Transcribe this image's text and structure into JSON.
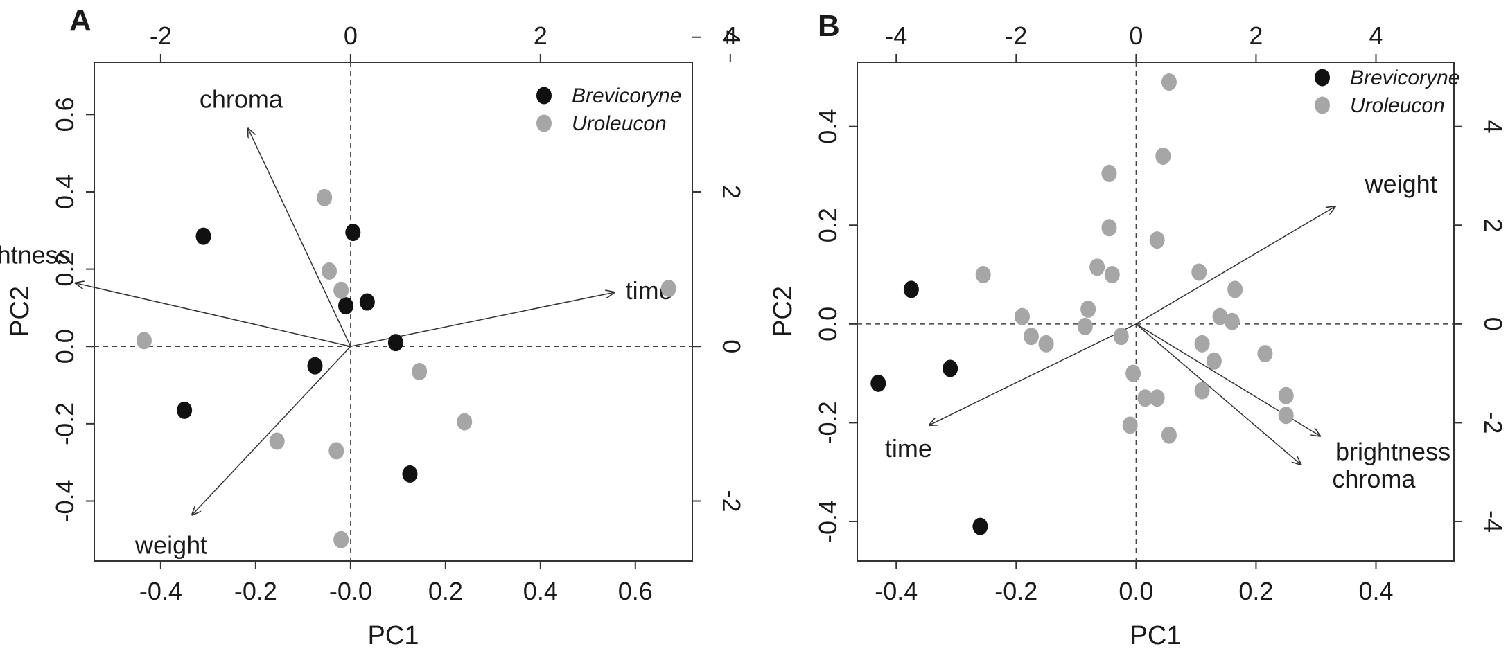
{
  "colors": {
    "Brevicoryne": "#111111",
    "Uroleucon": "#a6a6a6",
    "axis": "#333333",
    "dashed": "#444444"
  },
  "chart_data": [
    {
      "panel": "A",
      "type": "scatter",
      "xlabel": "PC1",
      "ylabel": "PC2",
      "xlim": [
        -0.54,
        0.72
      ],
      "ylim": [
        -0.555,
        0.735
      ],
      "xticks": [
        -0.4,
        -0.2,
        0.0,
        0.2,
        0.4,
        0.6
      ],
      "xtick_labels": [
        "-0.4",
        "-0.2",
        "-0.0",
        "0.2",
        "0.4",
        "0.6"
      ],
      "yticks": [
        -0.4,
        -0.2,
        0.0,
        0.2,
        0.4,
        0.6
      ],
      "ytick_labels": [
        "-0.4",
        "-0.2",
        "0.0",
        "0.2",
        "0.4",
        "0.6"
      ],
      "top_ticks": [
        -2,
        0,
        2,
        4
      ],
      "top_tick_labels": [
        "-2",
        "0",
        "2",
        "4"
      ],
      "right_ticks": [
        -2,
        0,
        2,
        4
      ],
      "right_tick_labels": [
        "-2",
        "0",
        "2",
        "4"
      ],
      "loading_scale": 0.2,
      "legend": {
        "position": "top-right",
        "entries": [
          "Brevicoryne",
          "Uroleucon"
        ]
      },
      "series": [
        {
          "name": "Brevicoryne",
          "points": [
            [
              -0.31,
              0.285
            ],
            [
              0.005,
              0.295
            ],
            [
              -0.01,
              0.105
            ],
            [
              0.035,
              0.115
            ],
            [
              0.095,
              0.01
            ],
            [
              -0.075,
              -0.05
            ],
            [
              -0.35,
              -0.165
            ],
            [
              0.125,
              -0.33
            ]
          ]
        },
        {
          "name": "Uroleucon",
          "points": [
            [
              -0.055,
              0.385
            ],
            [
              -0.045,
              0.195
            ],
            [
              -0.02,
              0.145
            ],
            [
              -0.435,
              0.015
            ],
            [
              0.67,
              0.15
            ],
            [
              0.145,
              -0.065
            ],
            [
              0.24,
              -0.195
            ],
            [
              -0.155,
              -0.245
            ],
            [
              -0.03,
              -0.27
            ],
            [
              -0.02,
              -0.5
            ]
          ]
        }
      ],
      "loadings": [
        {
          "label": "chroma",
          "x": -1.08,
          "y": 2.82
        },
        {
          "label": "brightness",
          "x": -2.9,
          "y": 0.82
        },
        {
          "label": "time",
          "x": 2.78,
          "y": 0.7
        },
        {
          "label": "weight",
          "x": -1.67,
          "y": -2.18
        }
      ]
    },
    {
      "panel": "B",
      "type": "scatter",
      "xlabel": "PC1",
      "ylabel": "PC2",
      "xlim": [
        -0.465,
        0.53
      ],
      "ylim": [
        -0.48,
        0.53
      ],
      "xticks": [
        -0.4,
        -0.2,
        0.0,
        0.2,
        0.4
      ],
      "xtick_labels": [
        "-0.4",
        "-0.2",
        "0.0",
        "0.2",
        "0.4"
      ],
      "yticks": [
        -0.4,
        -0.2,
        0.0,
        0.2,
        0.4
      ],
      "ytick_labels": [
        "-0.4",
        "-0.2",
        "0.0",
        "0.2",
        "0.4"
      ],
      "top_ticks": [
        -4,
        -2,
        0,
        2,
        4
      ],
      "top_tick_labels": [
        "-4",
        "-2",
        "0",
        "2",
        "4"
      ],
      "right_ticks": [
        -4,
        -2,
        0,
        2,
        4
      ],
      "right_tick_labels": [
        "-4",
        "-2",
        "0",
        "2",
        "4"
      ],
      "loading_scale": 0.1,
      "legend": {
        "position": "top-right",
        "entries": [
          "Brevicoryne",
          "Uroleucon"
        ]
      },
      "series": [
        {
          "name": "Brevicoryne",
          "points": [
            [
              -0.375,
              0.07
            ],
            [
              -0.31,
              -0.09
            ],
            [
              -0.43,
              -0.12
            ],
            [
              -0.26,
              -0.41
            ]
          ]
        },
        {
          "name": "Uroleucon",
          "points": [
            [
              0.055,
              0.49
            ],
            [
              0.045,
              0.34
            ],
            [
              -0.045,
              0.305
            ],
            [
              -0.045,
              0.195
            ],
            [
              0.035,
              0.17
            ],
            [
              -0.065,
              0.115
            ],
            [
              -0.04,
              0.1
            ],
            [
              -0.255,
              0.1
            ],
            [
              0.105,
              0.105
            ],
            [
              0.165,
              0.07
            ],
            [
              -0.08,
              0.03
            ],
            [
              -0.19,
              0.015
            ],
            [
              -0.085,
              -0.005
            ],
            [
              0.14,
              0.015
            ],
            [
              0.16,
              0.005
            ],
            [
              -0.175,
              -0.025
            ],
            [
              -0.15,
              -0.04
            ],
            [
              -0.025,
              -0.025
            ],
            [
              0.11,
              -0.04
            ],
            [
              0.13,
              -0.075
            ],
            [
              0.215,
              -0.06
            ],
            [
              -0.005,
              -0.1
            ],
            [
              0.015,
              -0.15
            ],
            [
              0.035,
              -0.15
            ],
            [
              0.11,
              -0.135
            ],
            [
              0.25,
              -0.145
            ],
            [
              0.25,
              -0.185
            ],
            [
              -0.01,
              -0.205
            ],
            [
              0.055,
              -0.225
            ]
          ]
        }
      ],
      "loadings": [
        {
          "label": "weight",
          "x": 3.32,
          "y": 2.38
        },
        {
          "label": "time",
          "x": -3.45,
          "y": -2.05
        },
        {
          "label": "brightness",
          "x": 3.07,
          "y": -2.27
        },
        {
          "label": "chroma",
          "x": 2.75,
          "y": -2.85
        }
      ]
    }
  ]
}
